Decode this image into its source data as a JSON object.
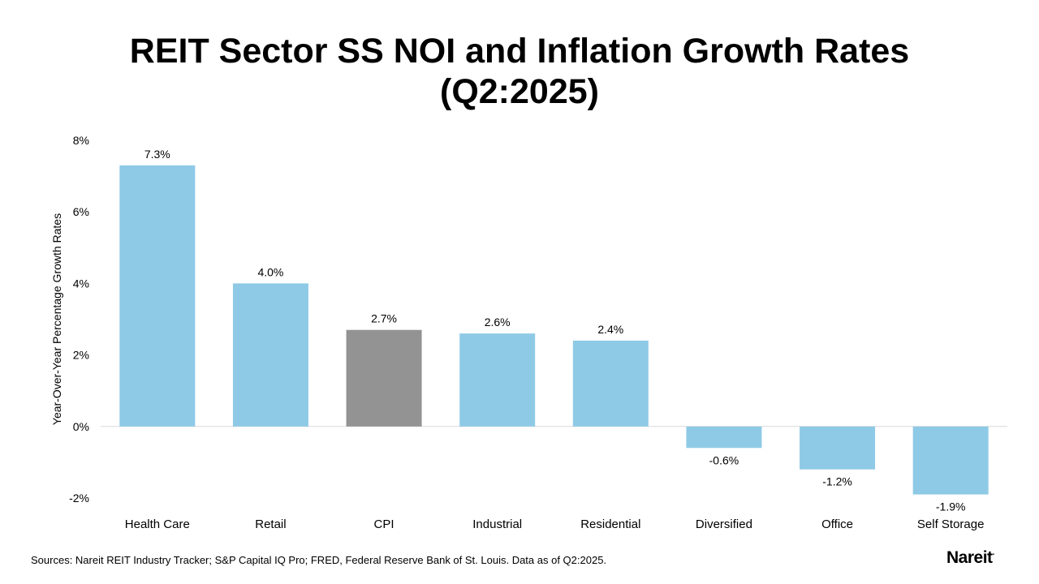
{
  "title_line1": "REIT Sector SS NOI and Inflation Growth Rates",
  "title_line2": "(Q2:2025)",
  "source": "Sources: Nareit REIT Industry Tracker; S&P Capital IQ Pro; FRED, Federal Reserve Bank of St. Louis. Data as of Q2:2025.",
  "logo_text": "Nareit",
  "logo_mark": ".",
  "colors": {
    "reit_bar": "#8ecae6",
    "cpi_bar": "#939393",
    "zero_line": "#d9d9d9"
  },
  "chart_data": {
    "type": "bar",
    "title": "REIT Sector SS NOI and Inflation Growth Rates (Q2:2025)",
    "xlabel": "",
    "ylabel": "Year-Over-Year Percentage Growth Rates",
    "categories": [
      "Health Care",
      "Retail",
      "CPI",
      "Industrial",
      "Residential",
      "Diversified",
      "Office",
      "Self Storage"
    ],
    "values": [
      7.3,
      4.0,
      2.7,
      2.6,
      2.4,
      -0.6,
      -1.2,
      -1.9
    ],
    "data_labels": [
      "7.3%",
      "4.0%",
      "2.7%",
      "2.6%",
      "2.4%",
      "-0.6%",
      "-1.2%",
      "-1.9%"
    ],
    "highlight_category": "CPI",
    "yticks": [
      -2,
      0,
      2,
      4,
      6,
      8
    ],
    "ytick_labels": [
      "-2%",
      "0%",
      "2%",
      "4%",
      "6%",
      "8%"
    ],
    "ylim": [
      -2,
      8
    ],
    "grid": false,
    "legend": "none"
  }
}
